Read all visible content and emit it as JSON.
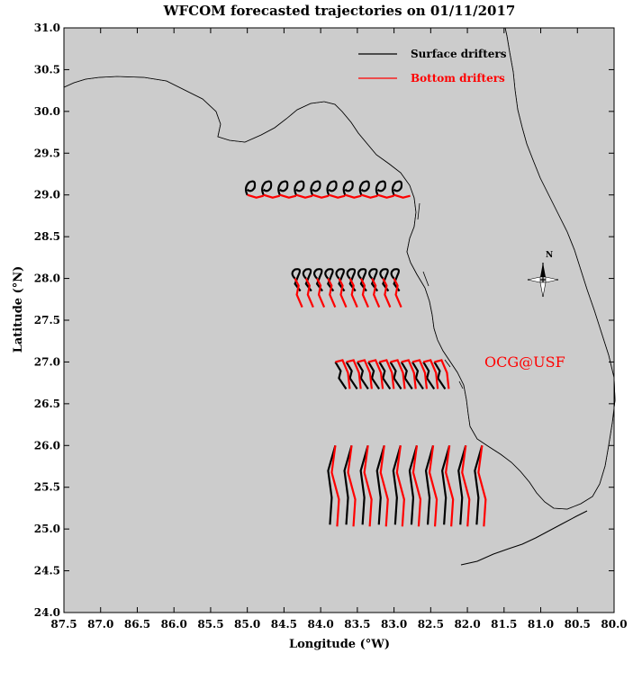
{
  "title": "WFCOM forecasted trajectories on 01/11/2017",
  "xlabel": "Longitude (°W)",
  "ylabel": "Latitude (°N)",
  "x_ticks": [
    "87.5",
    "87.0",
    "86.5",
    "86.0",
    "85.5",
    "85.0",
    "84.5",
    "84.0",
    "83.5",
    "83.0",
    "82.5",
    "82.0",
    "81.5",
    "81.0",
    "80.5",
    "80.0"
  ],
  "y_ticks": [
    "31.0",
    "30.5",
    "30.0",
    "29.5",
    "29.0",
    "28.5",
    "28.0",
    "27.5",
    "27.0",
    "26.5",
    "26.0",
    "25.5",
    "25.0",
    "24.5",
    "24.0"
  ],
  "legend": {
    "surface": {
      "label": "Surface drifters",
      "color": "#000000"
    },
    "bottom": {
      "label": "Bottom drifters",
      "color": "#ff0000"
    }
  },
  "compass_label": "N",
  "watermark": {
    "text": "OCG@USF",
    "color": "#ff0000"
  },
  "colors": {
    "land": "#cccccc",
    "water": "#ffffff",
    "surface": "#000000",
    "bottom": "#ff0000"
  },
  "chart_data": {
    "type": "map",
    "xlim": [
      87.5,
      80.0
    ],
    "ylim": [
      24.0,
      31.0
    ],
    "x_axis": "Longitude (°W)",
    "y_axis": "Latitude (°N)",
    "release_lines": [
      {
        "lat": 29.0,
        "lon_start": 85.0,
        "lon_end": 83.0
      },
      {
        "lat": 28.0,
        "lon_start": 84.35,
        "lon_end": 83.0
      },
      {
        "lat": 27.0,
        "lon_start": 83.8,
        "lon_end": 82.45
      },
      {
        "lat": 26.0,
        "lon_start": 83.8,
        "lon_end": 81.8
      }
    ]
  }
}
